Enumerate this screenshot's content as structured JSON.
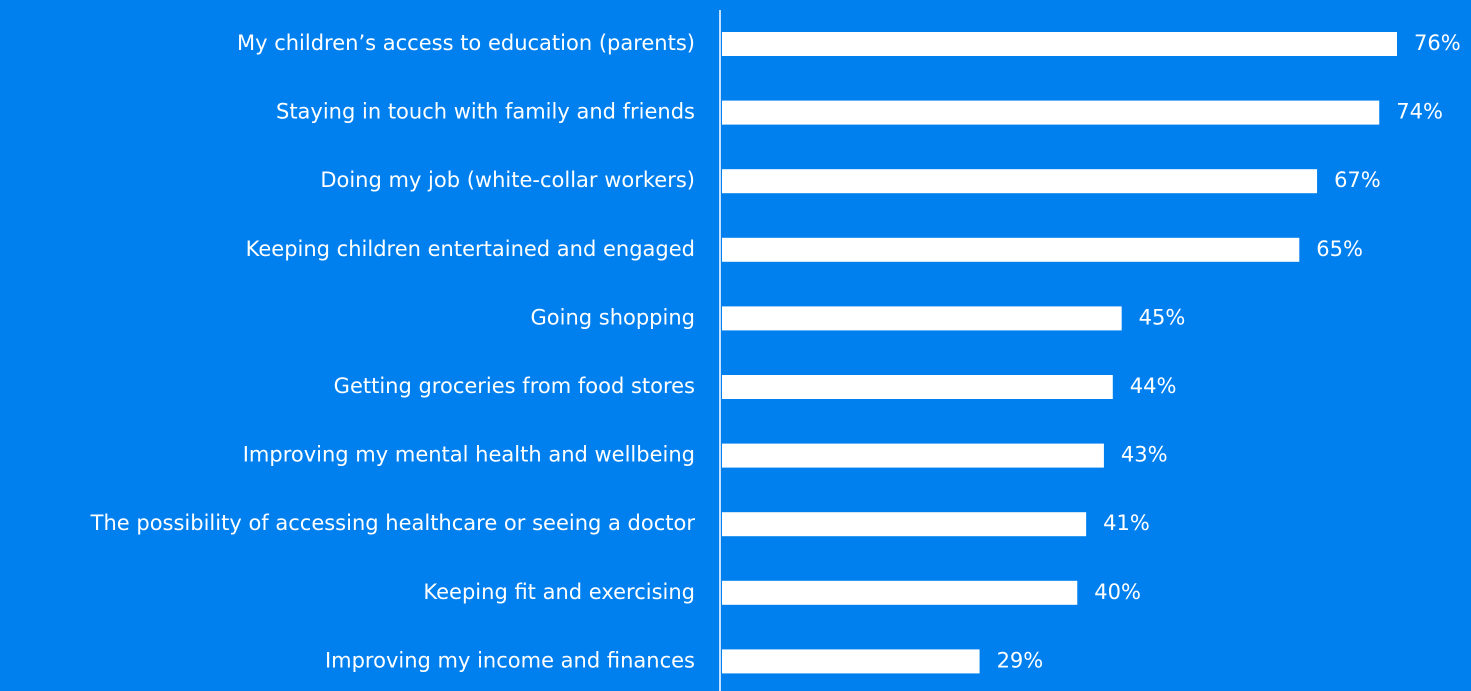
{
  "chart_data": {
    "type": "barh",
    "categories": [
      "My children’s access to education (parents)",
      "Staying in touch with family and friends",
      "Doing my job (white-collar workers)",
      "Keeping children entertained and engaged",
      "Going shopping",
      "Getting groceries from food stores",
      "Improving my mental health and wellbeing",
      "The possibility of accessing healthcare or seeing a doctor",
      "Keeping fit and exercising",
      "Improving my income and finances"
    ],
    "values": [
      76,
      74,
      67,
      65,
      45,
      44,
      43,
      41,
      40,
      29
    ],
    "value_labels": [
      "76%",
      "74%",
      "67%",
      "65%",
      "45%",
      "44%",
      "43%",
      "41%",
      "40%",
      "29%"
    ],
    "color": "#ffffff",
    "background": "#0080ef"
  }
}
